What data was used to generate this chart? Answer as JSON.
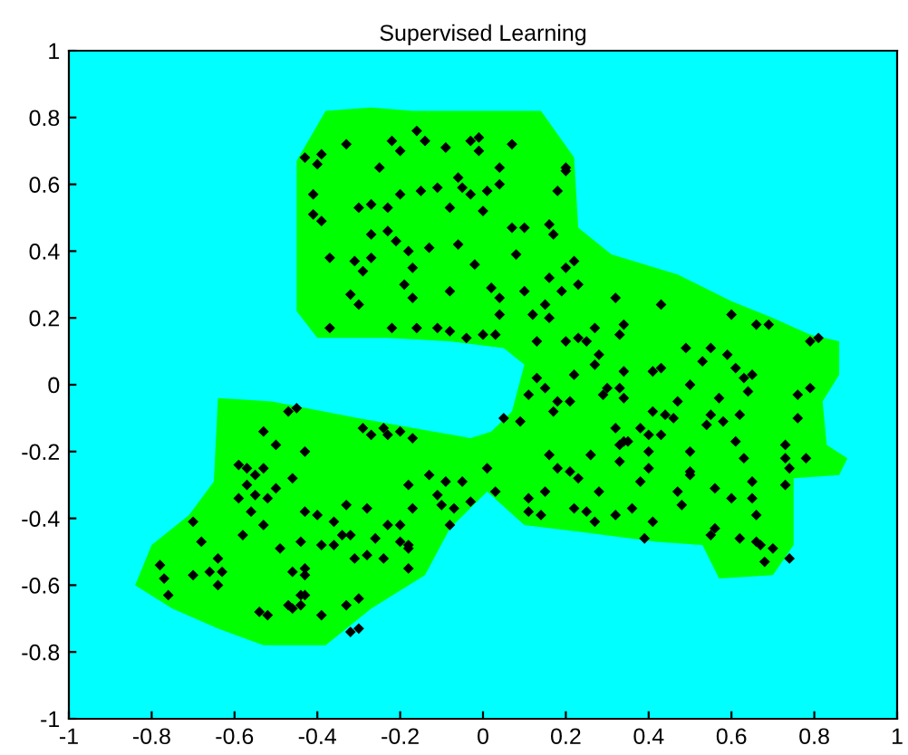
{
  "chart_data": {
    "type": "scatter",
    "title": "Supervised Learning",
    "xlim": [
      -1,
      1
    ],
    "ylim": [
      -1,
      1
    ],
    "xticks": [
      -1,
      -0.8,
      -0.6,
      -0.4,
      -0.2,
      0,
      0.2,
      0.4,
      0.6,
      0.8,
      1
    ],
    "yticks": [
      -1,
      -0.8,
      -0.6,
      -0.4,
      -0.2,
      0,
      0.2,
      0.4,
      0.6,
      0.8,
      1
    ],
    "grid": false,
    "series": [
      {
        "type": "area",
        "color": "#00ff00",
        "x": [
          -0.45,
          -0.38,
          -0.27,
          -0.17,
          0.14,
          0.22,
          0.23,
          0.31,
          0.47,
          0.6,
          0.7,
          0.79,
          0.86,
          0.86,
          0.82,
          0.83,
          0.88,
          0.86,
          0.75,
          0.75,
          0.7,
          0.57,
          0.53,
          0.42,
          0.23,
          0.1,
          0.01,
          -0.08,
          -0.14,
          -0.27,
          -0.38,
          -0.53,
          -0.64,
          -0.75,
          -0.84,
          -0.8,
          -0.71,
          -0.65,
          -0.64,
          -0.51,
          -0.3,
          -0.12,
          -0.03,
          0.02,
          0.07,
          0.1,
          0.05,
          -0.08,
          -0.23,
          -0.4,
          -0.45,
          -0.45
        ],
        "values": [
          0.67,
          0.82,
          0.83,
          0.82,
          0.82,
          0.68,
          0.47,
          0.39,
          0.33,
          0.25,
          0.2,
          0.15,
          0.13,
          0.03,
          -0.05,
          -0.18,
          -0.22,
          -0.27,
          -0.28,
          -0.48,
          -0.57,
          -0.58,
          -0.48,
          -0.47,
          -0.44,
          -0.42,
          -0.32,
          -0.43,
          -0.57,
          -0.67,
          -0.78,
          -0.78,
          -0.73,
          -0.67,
          -0.6,
          -0.48,
          -0.39,
          -0.29,
          -0.04,
          -0.05,
          -0.1,
          -0.14,
          -0.16,
          -0.14,
          -0.08,
          0.06,
          0.11,
          0.13,
          0.14,
          0.14,
          0.22,
          0.44
        ]
      },
      {
        "color": "#000000",
        "marker": "diamond",
        "x": [
          -0.43,
          -0.39,
          -0.4,
          -0.33,
          -0.22,
          -0.16,
          -0.2,
          -0.14,
          -0.09,
          -0.03,
          -0.01,
          -0.01,
          0.07,
          0.04,
          0.2,
          0.2,
          -0.25,
          -0.41,
          -0.41,
          -0.39,
          -0.3,
          -0.27,
          -0.23,
          -0.2,
          -0.15,
          -0.11,
          -0.06,
          -0.05,
          -0.03,
          0.01,
          0.04,
          -0.08,
          0.0,
          0.18,
          0.16,
          0.17,
          0.07,
          0.1,
          -0.27,
          -0.23,
          -0.21,
          -0.18,
          -0.13,
          -0.06,
          -0.37,
          -0.31,
          -0.27,
          -0.29,
          -0.17,
          -0.02,
          0.08,
          -0.19,
          -0.08,
          0.02,
          0.1,
          -0.32,
          -0.3,
          -0.17,
          0.04,
          0.04,
          0.12,
          0.16,
          0.15,
          0.19,
          0.16,
          0.2,
          0.22,
          0.23,
          -0.37,
          -0.22,
          -0.16,
          -0.11,
          -0.08,
          -0.04,
          0.0,
          0.03,
          0.13,
          0.2,
          0.23,
          0.32,
          0.43,
          0.6,
          0.66,
          0.69,
          0.79,
          0.81,
          0.27,
          0.34,
          0.33,
          0.25,
          0.28,
          0.27,
          0.49,
          0.55,
          0.59,
          0.53,
          0.41,
          0.43,
          0.34,
          0.61,
          0.65,
          0.63,
          0.64,
          0.76,
          0.79,
          0.13,
          0.15,
          0.11,
          0.22,
          0.3,
          0.33,
          0.29,
          0.34,
          0.5,
          0.47,
          0.57,
          0.18,
          0.21,
          0.05,
          0.09,
          0.17,
          0.41,
          0.44,
          0.46,
          0.55,
          0.54,
          0.58,
          0.62,
          0.76,
          0.32,
          0.38,
          0.4,
          0.43,
          0.34,
          0.35,
          0.33,
          0.61,
          0.73,
          0.5,
          0.63,
          0.73,
          0.78,
          0.16,
          0.26,
          0.4,
          0.33,
          0.4,
          0.18,
          0.21,
          0.23,
          0.5,
          0.5,
          0.74,
          0.01,
          0.65,
          0.73,
          0.03,
          0.15,
          0.28,
          0.38,
          0.47,
          0.56,
          0.6,
          0.65,
          0.11,
          0.48,
          0.11,
          0.14,
          0.22,
          0.25,
          0.27,
          0.36,
          0.32,
          0.41,
          0.66,
          0.56,
          0.55,
          0.39,
          0.62,
          0.66,
          0.67,
          0.7,
          0.74,
          0.68,
          -0.47,
          -0.45,
          -0.53,
          -0.5,
          -0.43,
          -0.29,
          -0.27,
          -0.24,
          -0.23,
          -0.2,
          -0.17,
          -0.59,
          -0.57,
          -0.55,
          -0.53,
          -0.57,
          -0.55,
          -0.52,
          -0.5,
          -0.59,
          -0.56,
          -0.46,
          -0.13,
          -0.09,
          -0.05,
          -0.18,
          -0.11,
          -0.1,
          -0.07,
          -0.03,
          -0.7,
          -0.53,
          -0.58,
          -0.43,
          -0.4,
          -0.33,
          -0.28,
          -0.36,
          -0.17,
          -0.2,
          -0.23,
          -0.08,
          -0.68,
          -0.44,
          -0.49,
          -0.39,
          -0.36,
          -0.34,
          -0.32,
          -0.26,
          -0.2,
          -0.18,
          -0.18,
          -0.31,
          -0.28,
          -0.24,
          -0.18,
          -0.78,
          -0.77,
          -0.76,
          -0.7,
          -0.66,
          -0.63,
          -0.64,
          -0.64,
          -0.46,
          -0.43,
          -0.43,
          -0.44,
          -0.43,
          -0.47,
          -0.46,
          -0.44,
          -0.54,
          -0.52,
          -0.39,
          -0.33,
          -0.3,
          -0.32,
          -0.3
        ],
        "values": [
          0.68,
          0.69,
          0.66,
          0.72,
          0.73,
          0.76,
          0.7,
          0.73,
          0.71,
          0.73,
          0.74,
          0.7,
          0.72,
          0.65,
          0.65,
          0.64,
          0.65,
          0.57,
          0.51,
          0.49,
          0.53,
          0.54,
          0.53,
          0.57,
          0.58,
          0.59,
          0.62,
          0.59,
          0.57,
          0.58,
          0.6,
          0.53,
          0.52,
          0.58,
          0.48,
          0.45,
          0.47,
          0.47,
          0.45,
          0.46,
          0.43,
          0.4,
          0.41,
          0.42,
          0.38,
          0.37,
          0.38,
          0.34,
          0.35,
          0.36,
          0.39,
          0.3,
          0.28,
          0.29,
          0.28,
          0.27,
          0.24,
          0.26,
          0.26,
          0.21,
          0.21,
          0.2,
          0.24,
          0.28,
          0.32,
          0.35,
          0.37,
          0.3,
          0.17,
          0.17,
          0.17,
          0.17,
          0.16,
          0.14,
          0.15,
          0.15,
          0.13,
          0.13,
          0.14,
          0.26,
          0.24,
          0.21,
          0.18,
          0.18,
          0.13,
          0.14,
          0.17,
          0.18,
          0.15,
          0.13,
          0.09,
          0.06,
          0.11,
          0.11,
          0.09,
          0.07,
          0.04,
          0.05,
          0.04,
          0.05,
          0.03,
          0.02,
          -0.02,
          -0.03,
          -0.01,
          0.02,
          -0.01,
          -0.03,
          0.03,
          -0.01,
          -0.01,
          -0.03,
          -0.04,
          0.0,
          -0.05,
          -0.04,
          -0.05,
          -0.05,
          -0.1,
          -0.11,
          -0.08,
          -0.08,
          -0.09,
          -0.1,
          -0.09,
          -0.12,
          -0.11,
          -0.09,
          -0.1,
          -0.13,
          -0.13,
          -0.15,
          -0.15,
          -0.17,
          -0.17,
          -0.18,
          -0.17,
          -0.18,
          -0.2,
          -0.22,
          -0.22,
          -0.22,
          -0.21,
          -0.21,
          -0.2,
          -0.23,
          -0.25,
          -0.25,
          -0.26,
          -0.28,
          -0.26,
          -0.27,
          -0.25,
          -0.25,
          -0.29,
          -0.3,
          -0.32,
          -0.32,
          -0.32,
          -0.29,
          -0.32,
          -0.31,
          -0.34,
          -0.34,
          -0.34,
          -0.36,
          -0.38,
          -0.39,
          -0.37,
          -0.38,
          -0.41,
          -0.37,
          -0.39,
          -0.41,
          -0.39,
          -0.43,
          -0.45,
          -0.46,
          -0.46,
          -0.47,
          -0.48,
          -0.49,
          -0.52,
          -0.53,
          -0.08,
          -0.07,
          -0.14,
          -0.18,
          -0.2,
          -0.13,
          -0.15,
          -0.13,
          -0.15,
          -0.14,
          -0.16,
          -0.24,
          -0.25,
          -0.27,
          -0.25,
          -0.3,
          -0.33,
          -0.34,
          -0.31,
          -0.34,
          -0.38,
          -0.28,
          -0.27,
          -0.29,
          -0.29,
          -0.3,
          -0.33,
          -0.36,
          -0.37,
          -0.35,
          -0.41,
          -0.42,
          -0.45,
          -0.38,
          -0.39,
          -0.36,
          -0.37,
          -0.41,
          -0.37,
          -0.42,
          -0.42,
          -0.42,
          -0.47,
          -0.47,
          -0.49,
          -0.48,
          -0.48,
          -0.45,
          -0.45,
          -0.46,
          -0.47,
          -0.48,
          -0.49,
          -0.52,
          -0.51,
          -0.52,
          -0.55,
          -0.54,
          -0.58,
          -0.63,
          -0.57,
          -0.56,
          -0.56,
          -0.52,
          -0.6,
          -0.56,
          -0.55,
          -0.57,
          -0.63,
          -0.63,
          -0.66,
          -0.67,
          -0.66,
          -0.68,
          -0.69,
          -0.69,
          -0.66,
          -0.64,
          -0.74,
          -0.73
        ]
      }
    ]
  }
}
